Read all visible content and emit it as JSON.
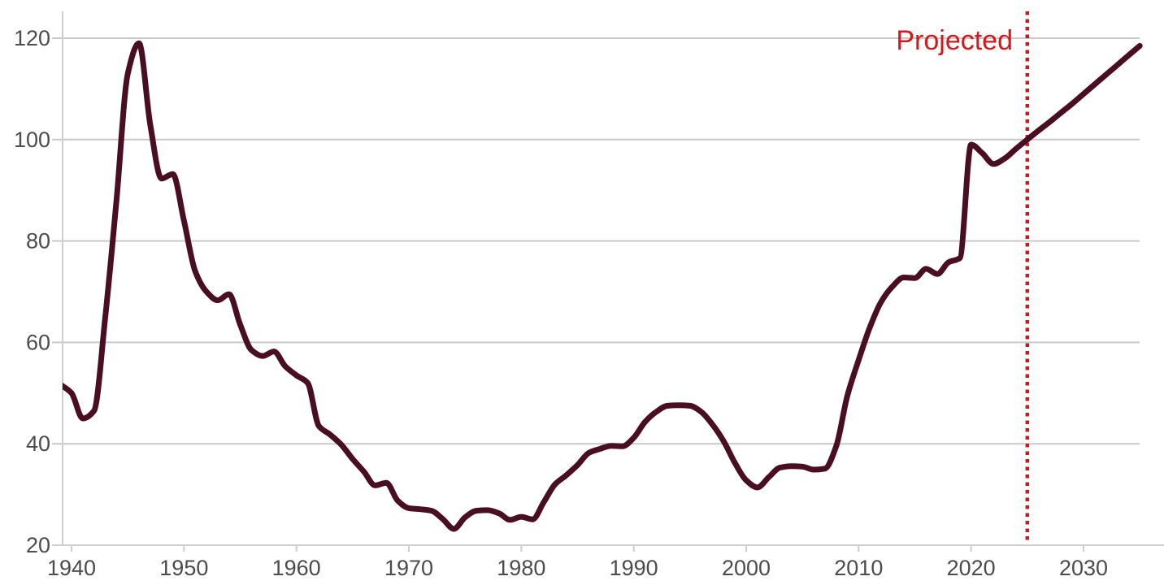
{
  "chart_data": {
    "type": "line",
    "title": "",
    "xlabel": "",
    "ylabel": "",
    "years": [
      1939,
      1940,
      1941,
      1942,
      1943,
      1944,
      1945,
      1946,
      1947,
      1948,
      1949,
      1950,
      1951,
      1952,
      1953,
      1954,
      1955,
      1956,
      1957,
      1958,
      1959,
      1960,
      1961,
      1962,
      1963,
      1964,
      1965,
      1966,
      1967,
      1968,
      1969,
      1970,
      1971,
      1972,
      1973,
      1974,
      1975,
      1976,
      1977,
      1978,
      1979,
      1980,
      1981,
      1982,
      1983,
      1984,
      1985,
      1986,
      1987,
      1988,
      1989,
      1990,
      1991,
      1992,
      1993,
      1994,
      1995,
      1996,
      1997,
      1998,
      1999,
      2000,
      2001,
      2002,
      2003,
      2004,
      2005,
      2006,
      2007,
      2008,
      2009,
      2010,
      2011,
      2012,
      2013,
      2014,
      2015,
      2016,
      2017,
      2018,
      2019,
      2020,
      2021,
      2022,
      2023,
      2024,
      2025,
      2026,
      2027,
      2028,
      2029,
      2030,
      2031,
      2032,
      2033,
      2034,
      2035
    ],
    "values": [
      51.7,
      50.0,
      45.0,
      46.5,
      65.0,
      88.0,
      113.0,
      119.0,
      103.0,
      92.3,
      93.2,
      84.0,
      74.0,
      70.0,
      68.3,
      69.5,
      63.5,
      58.5,
      57.3,
      58.2,
      55.3,
      53.5,
      52.0,
      43.5,
      41.8,
      39.8,
      37.0,
      34.5,
      31.8,
      32.3,
      28.8,
      27.3,
      27.1,
      26.8,
      25.2,
      23.2,
      25.5,
      26.8,
      26.9,
      26.3,
      25.0,
      25.6,
      25.1,
      28.5,
      32.0,
      33.8,
      35.8,
      38.2,
      39.0,
      39.6,
      39.5,
      41.2,
      44.3,
      46.3,
      47.5,
      47.6,
      47.5,
      46.3,
      43.8,
      40.5,
      36.2,
      32.8,
      31.4,
      33.4,
      35.3,
      35.6,
      35.5,
      34.9,
      35.1,
      39.5,
      49.5,
      56.5,
      63.0,
      68.0,
      71.0,
      72.8,
      72.7,
      74.5,
      73.5,
      75.8,
      76.6,
      99.0,
      97.3,
      95.2,
      96.3,
      98.2,
      100.0,
      101.8,
      103.5,
      105.3,
      107.1,
      109.0,
      110.9,
      112.8,
      114.7,
      116.6,
      118.5
    ],
    "y_ticks": [
      20,
      40,
      60,
      80,
      100,
      120
    ],
    "x_ticks": [
      1940,
      1950,
      1960,
      1970,
      1980,
      1990,
      2000,
      2010,
      2020,
      2030
    ],
    "ylim": [
      20,
      120
    ],
    "xlim": [
      1939,
      2035
    ],
    "grid": true,
    "legend": "none",
    "annotations": {
      "projected_label": "Projected",
      "projected_line_year": 2025
    },
    "colors": {
      "line": "#4a0e22",
      "projected_text": "#d6171b",
      "projected_line": "#c01c22",
      "grid": "#c9c9c9",
      "axis": "#cfcfcf",
      "tick_text": "#4c4c4c"
    }
  }
}
